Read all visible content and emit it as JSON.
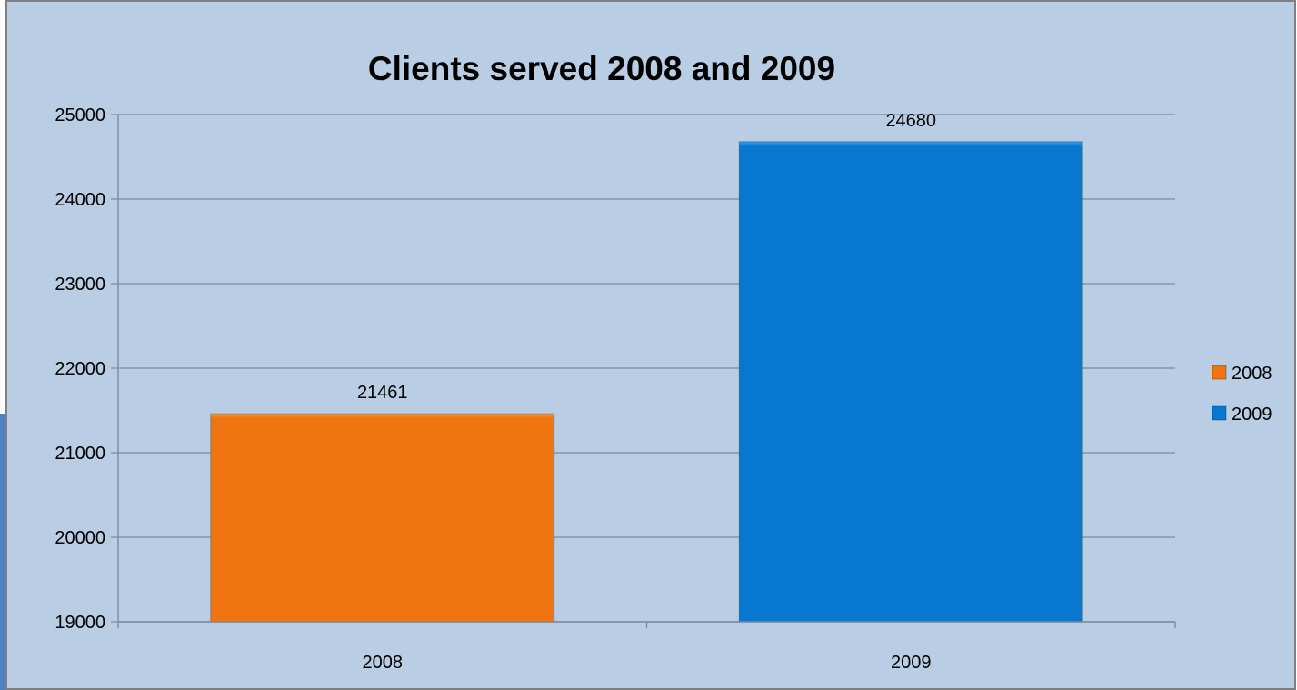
{
  "chart_data": {
    "type": "bar",
    "title": "Clients served 2008 and 2009",
    "categories": [
      "2008",
      "2009"
    ],
    "series": [
      {
        "name": "2008",
        "category": "2008",
        "value": 21461,
        "color": "#F07511"
      },
      {
        "name": "2009",
        "category": "2009",
        "value": 24680,
        "color": "#0877CF"
      }
    ],
    "ylim": [
      19000,
      25000
    ],
    "yticks": [
      "19000",
      "20000",
      "21000",
      "22000",
      "23000",
      "24000",
      "25000"
    ],
    "grid": true,
    "legend_position": "right",
    "data_labels": [
      "21461",
      "24680"
    ]
  },
  "colors": {
    "chart_background": "#B9CDE5",
    "frame": "#7F7F7F",
    "gridline": "#7F8A99",
    "text": "#000000",
    "side_panel": "#4F81BD"
  }
}
